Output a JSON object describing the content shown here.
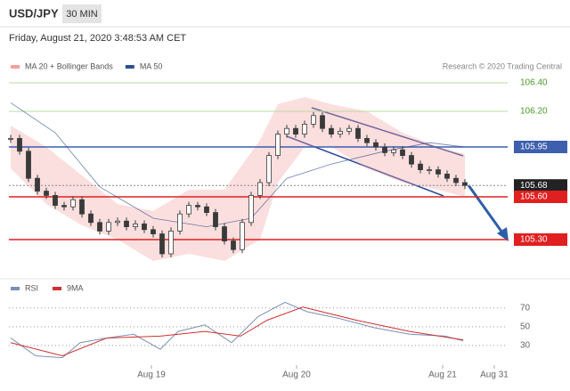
{
  "header": {
    "symbol": "USD/JPY",
    "interval": "30 MIN",
    "timestamp": "Friday, August 21, 2020 3:48:53 AM CET",
    "credit": "Research © 2020 Trading Central"
  },
  "chart_data": [
    {
      "type": "candlestick",
      "color": "#3a3a3a",
      "x": [
        0,
        1,
        2,
        3,
        4,
        5,
        6,
        7,
        8,
        9,
        10,
        11,
        12,
        13,
        14,
        15,
        16,
        17,
        18,
        19,
        20,
        21,
        22,
        23,
        24,
        25,
        26,
        27,
        28,
        29,
        30,
        31,
        32,
        33,
        34,
        35,
        36,
        37,
        38,
        39,
        40,
        41,
        42,
        43,
        44,
        45,
        46,
        47,
        48,
        49,
        50,
        51
      ],
      "values": [
        106.01,
        105.92,
        105.73,
        105.64,
        105.61,
        105.54,
        105.53,
        105.58,
        105.48,
        105.42,
        105.36,
        105.42,
        105.43,
        105.39,
        105.41,
        105.37,
        105.34,
        105.2,
        105.36,
        105.48,
        105.54,
        105.53,
        105.49,
        105.39,
        105.29,
        105.23,
        105.42,
        105.61,
        105.7,
        105.89,
        106.04,
        106.08,
        106.04,
        106.11,
        106.17,
        106.08,
        106.04,
        106.06,
        106.08,
        106.01,
        105.98,
        105.95,
        105.91,
        105.93,
        105.89,
        105.83,
        105.79,
        105.79,
        105.76,
        105.73,
        105.7,
        105.68
      ],
      "series": [
        {
          "name": "MA 20 + Bollinger Bands",
          "color": "#f4a0a0",
          "x": [
            0,
            4,
            8,
            12,
            16,
            20,
            24,
            28,
            30,
            33,
            36,
            40,
            44,
            48,
            51
          ],
          "upper": [
            106.1,
            105.95,
            105.75,
            105.55,
            105.5,
            105.65,
            105.65,
            106.0,
            106.25,
            106.3,
            106.25,
            106.2,
            106.05,
            105.95,
            105.9
          ],
          "lower": [
            105.8,
            105.55,
            105.4,
            105.3,
            105.15,
            105.2,
            105.15,
            105.3,
            105.7,
            105.95,
            105.95,
            105.8,
            105.7,
            105.65,
            105.6
          ]
        },
        {
          "name": "MA 50",
          "color": "#2f4f8f",
          "x": [
            0,
            5,
            10,
            16,
            22,
            27,
            31,
            36,
            42,
            47,
            51
          ],
          "values": [
            106.26,
            106.05,
            105.67,
            105.45,
            105.39,
            105.45,
            105.73,
            105.83,
            105.92,
            105.98,
            105.95
          ]
        }
      ],
      "levels": [
        {
          "value": 106.4,
          "label": "106.40",
          "color": "#b8dba0",
          "label_color": "#4c9a2a",
          "box_color": null
        },
        {
          "value": 106.2,
          "label": "106.20",
          "color": "#b8dba0",
          "label_color": "#4c9a2a",
          "box_color": null
        },
        {
          "value": 105.95,
          "color": "#3d5fae",
          "label_color": "#ffffff",
          "box_color": "#3d5fae"
        },
        {
          "value": 105.68,
          "color": "#888888",
          "label_color": "#ffffff",
          "box_color": "#222222",
          "dashed": true
        },
        {
          "value": 105.6,
          "label": "105.60",
          "color": "#e02020",
          "label_color": "#ffffff",
          "box_color": "#e02020"
        },
        {
          "value": 105.3,
          "label": "105.30",
          "color": "#e02020",
          "label_color": "#ffffff",
          "box_color": "#e02020"
        }
      ],
      "xlim": [
        -0.2,
        55.8
      ],
      "ylim": [
        105.05,
        106.45
      ]
    },
    {
      "type": "line",
      "series": [
        {
          "name": "RSI",
          "color": "#7a8fb8",
          "x": [
            0,
            2.8,
            5.8,
            7.8,
            10.8,
            13.8,
            16.8,
            18.8,
            21.8,
            24.8,
            27.8,
            30.8,
            33.3,
            36.8,
            40.8,
            44.8,
            48.8,
            50.8
          ],
          "values": [
            38,
            19,
            17,
            33,
            38,
            42,
            26,
            45,
            52,
            33,
            61,
            76,
            66,
            59,
            49,
            42,
            40,
            35
          ]
        },
        {
          "name": "9MA",
          "color": "#d03030",
          "x": [
            0,
            5.8,
            10.8,
            16.8,
            21.8,
            25.8,
            28.8,
            32.8,
            38.8,
            44.8,
            50.8
          ],
          "values": [
            33,
            19,
            38,
            40,
            45,
            40,
            57,
            71,
            57,
            45,
            36
          ]
        }
      ],
      "xlim": [
        -0.2,
        55.8
      ],
      "ylim": [
        9,
        85
      ],
      "yticks": [
        70,
        50,
        30
      ],
      "xticks": [
        {
          "value": 15.8,
          "label": "Aug 19"
        },
        {
          "value": 32.1,
          "label": "Aug 20"
        },
        {
          "value": 48.5,
          "label": "Aug 21"
        },
        {
          "value": 54.3,
          "label": "Aug 31"
        }
      ]
    }
  ]
}
